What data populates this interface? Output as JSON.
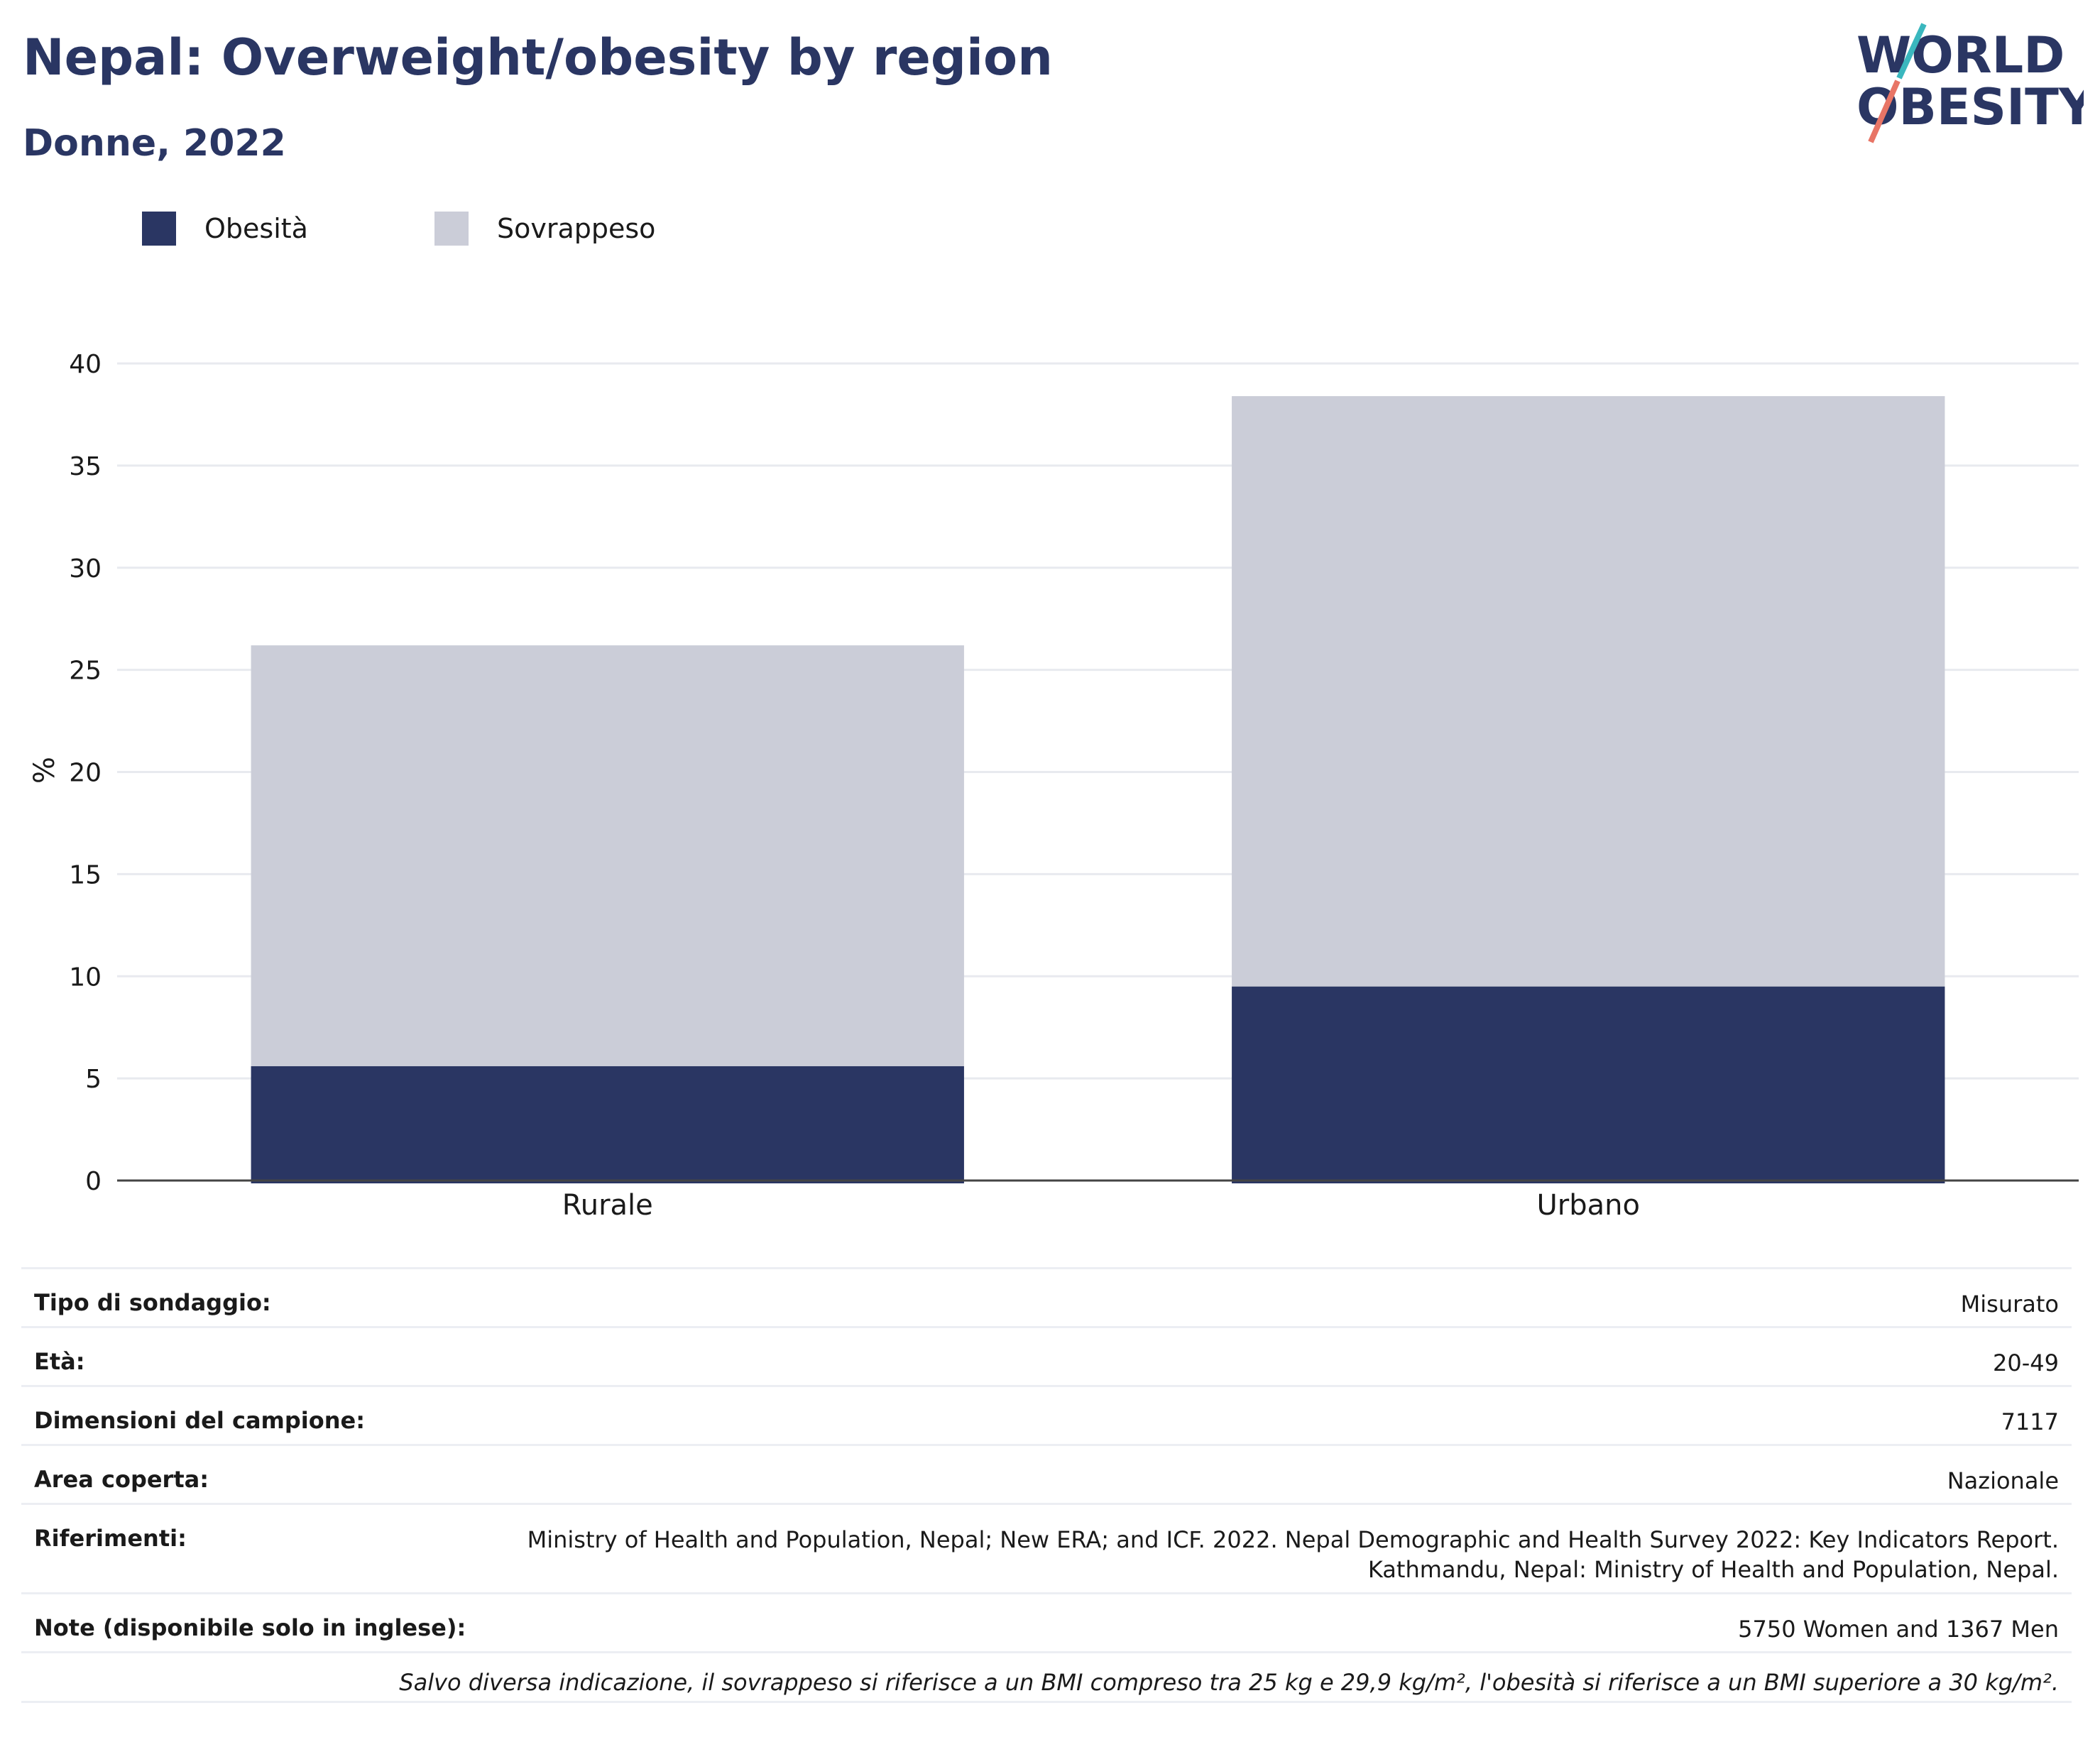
{
  "header": {
    "title": "Nepal: Overweight/obesity by region",
    "subtitle": "Donne, 2022"
  },
  "logo": {
    "line1": "WORLD",
    "line2": "OBESITY"
  },
  "colors": {
    "obesity": "#2a3663",
    "overweight": "#cbcdd8",
    "text": "#2a3663",
    "logo_teal": "#3ab7be",
    "logo_coral": "#e87566"
  },
  "chart_data": {
    "type": "bar",
    "stacked": true,
    "categories": [
      "Rurale",
      "Urbano"
    ],
    "series": [
      {
        "name": "Obesità",
        "values": [
          5.6,
          9.5
        ],
        "color": "#2a3663"
      },
      {
        "name": "Sovrappeso",
        "values": [
          20.6,
          28.9
        ],
        "color": "#cbcdd8"
      }
    ],
    "ylabel": "%",
    "xlabel": "",
    "ylim": [
      0,
      40
    ],
    "yticks": [
      0,
      5,
      10,
      15,
      20,
      25,
      30,
      35,
      40
    ],
    "grid": true,
    "legend_position": "top-left"
  },
  "info": {
    "survey_type": {
      "label": "Tipo di sondaggio:",
      "value": "Misurato"
    },
    "age": {
      "label": "Età:",
      "value": "20-49"
    },
    "sample_size": {
      "label": "Dimensioni del campione:",
      "value": "7117"
    },
    "area": {
      "label": "Area coperta:",
      "value": "Nazionale"
    },
    "references": {
      "label": "Riferimenti:",
      "value_line1": "Ministry of Health and Population, Nepal; New ERA; and ICF. 2022. Nepal Demographic and Health Survey 2022: Key Indicators Report.",
      "value_line2": "Kathmandu, Nepal: Ministry of Health and Population, Nepal."
    },
    "notes": {
      "label": "Note (disponibile solo in inglese):",
      "value": "5750 Women and 1367 Men"
    },
    "footnote": "Salvo diversa indicazione, il sovrappeso si riferisce a un BMI compreso tra 25 kg e 29,9 kg/m², l'obesità si riferisce a un BMI superiore a 30 kg/m²."
  }
}
